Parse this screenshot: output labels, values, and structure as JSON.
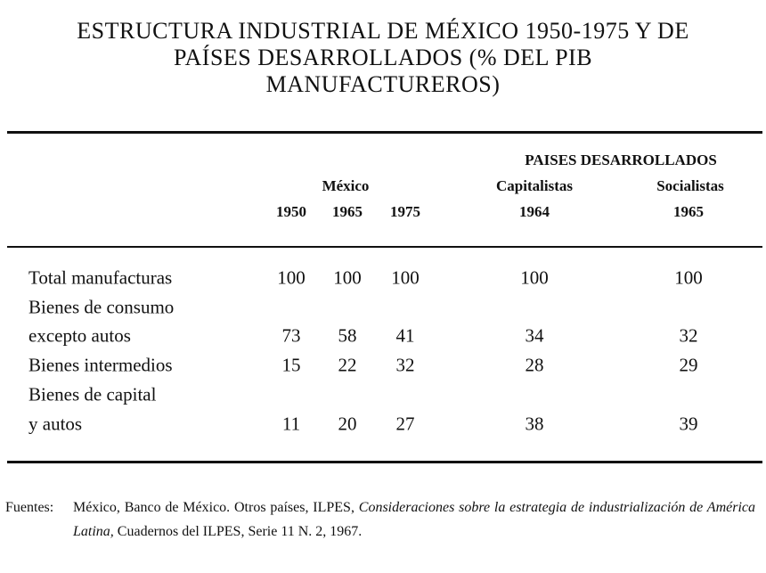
{
  "title": [
    "ESTRUCTURA INDUSTRIAL DE MÉXICO 1950-1975 Y DE",
    "PAÍSES DESARROLLADOS (% DEL PIB",
    "MANUFACTUREROS)"
  ],
  "table": {
    "header": {
      "group": "PAISES DESARROLLADOS",
      "mexico": "México",
      "capitalistas": "Capitalistas",
      "socialistas": "Socialistas",
      "years": [
        "1950",
        "1965",
        "1975",
        "1964",
        "1965"
      ]
    },
    "rows": [
      {
        "label": [
          "Total manufacturas"
        ],
        "values": [
          100,
          100,
          100,
          100,
          100
        ]
      },
      {
        "label": [
          "Bienes de consumo",
          "excepto autos"
        ],
        "values": [
          73,
          58,
          41,
          34,
          32
        ]
      },
      {
        "label": [
          "Bienes intermedios"
        ],
        "values": [
          15,
          22,
          32,
          28,
          29
        ]
      },
      {
        "label": [
          "Bienes de capital",
          "y autos"
        ],
        "values": [
          11,
          20,
          27,
          38,
          39
        ]
      }
    ]
  },
  "source": {
    "label": "Fuentes:",
    "parts": [
      {
        "text": "México, Banco de México. Otros países, ILPES, ",
        "italic": false
      },
      {
        "text": "Consideraciones sobre la estrategia de industrialización de América Latina,",
        "italic": true
      },
      {
        "text": " Cuadernos del ILPES, Serie 11 N. 2, 1967.",
        "italic": false
      }
    ]
  }
}
